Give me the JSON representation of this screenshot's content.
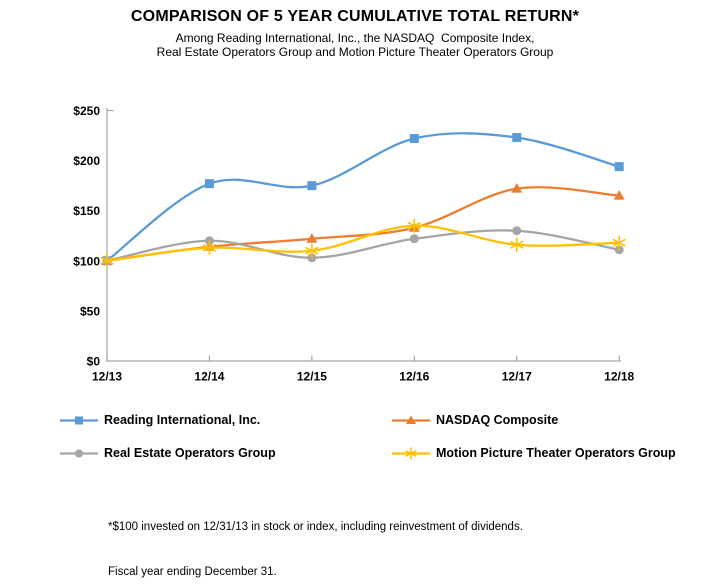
{
  "header": {
    "title": "COMPARISON OF 5 YEAR CUMULATIVE TOTAL RETURN*",
    "subtitle_line1": "Among Reading International, Inc., the NASDAQ  Composite Index,",
    "subtitle_line2": "Real Estate Operators Group and Motion Picture Theater Operators Group"
  },
  "chart_data": {
    "type": "line",
    "x": [
      "12/13",
      "12/14",
      "12/15",
      "12/16",
      "12/17",
      "12/18"
    ],
    "series": [
      {
        "name": "Reading International, Inc.",
        "color": "#5B9BD5",
        "marker": "square",
        "values": [
          100,
          177,
          175,
          222,
          223,
          194
        ]
      },
      {
        "name": "NASDAQ Composite",
        "color": "#ED7D31",
        "marker": "triangle",
        "values": [
          100,
          114,
          122,
          133,
          172,
          165
        ]
      },
      {
        "name": "Real Estate Operators Group",
        "color": "#A5A5A5",
        "marker": "circle",
        "values": [
          100,
          120,
          103,
          122,
          130,
          111
        ]
      },
      {
        "name": "Motion Picture Theater Operators Group",
        "color": "#FFC000",
        "marker": "asterisk",
        "values": [
          100,
          113,
          110,
          135,
          116,
          118
        ]
      }
    ],
    "ylim": [
      0,
      250
    ],
    "ytick_labels": [
      "$0",
      "$50",
      "$100",
      "$150",
      "$200",
      "$250"
    ],
    "grid": false,
    "smooth_lines": true,
    "legend_position": "bottom",
    "axis_color": "#A6A6A6",
    "xlabel": "",
    "ylabel": ""
  },
  "footnote": {
    "line1": "*$100 invested on 12/31/13 in stock or index, including reinvestment of dividends.",
    "line2": "Fiscal year ending December 31."
  }
}
